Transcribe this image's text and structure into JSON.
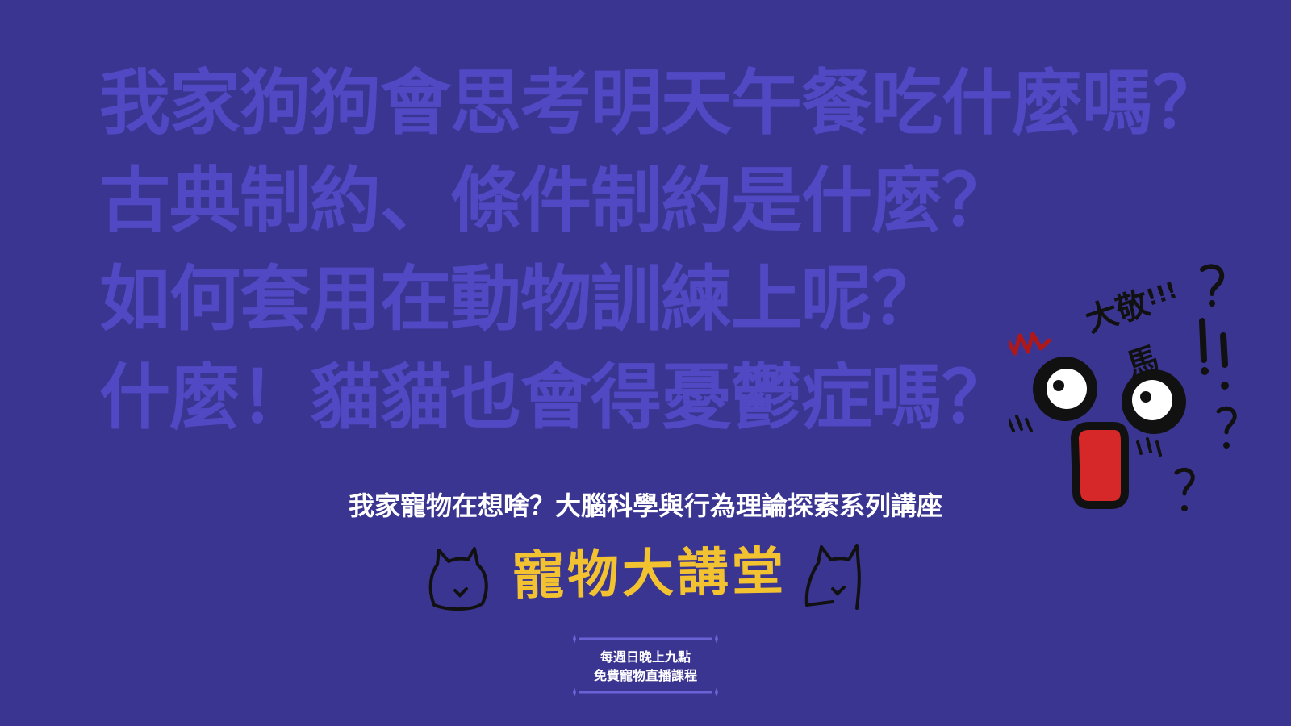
{
  "headlines": [
    "我家狗狗會思考明天午餐吃什麼嗎？",
    "古典制約、條件制約是什麼？",
    "如何套用在動物訓練上呢？",
    "什麼！貓貓也會得憂鬱症嗎？"
  ],
  "subtitle": "我家寵物在想啥？大腦科學與行為理論探索系列講座",
  "logo": {
    "text": "寵物大講堂",
    "icons": [
      "cat-doodle-left",
      "cat-doodle-right"
    ]
  },
  "schedule": {
    "line1": "每週日晚上九點",
    "line2": "免費寵物直播課程"
  },
  "mascot": {
    "speech_chars": [
      "大",
      "敬",
      "馬"
    ],
    "speech_exclaim": "!!!",
    "icon": "shocked-face-doodle"
  },
  "colors": {
    "background": "#3b3592",
    "headline": "#5149c4",
    "subtitle": "#ffffff",
    "logo_text": "#f2c230",
    "mouth": "#d62828",
    "squiggle": "#b01818"
  }
}
